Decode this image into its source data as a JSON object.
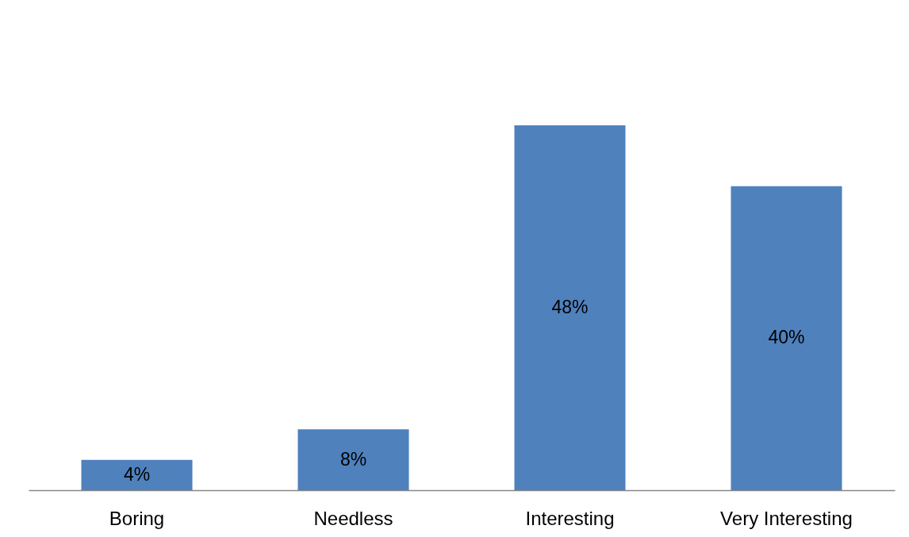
{
  "chart_data": {
    "type": "bar",
    "categories": [
      "Boring",
      "Needless",
      "Interesting",
      "Very Interesting"
    ],
    "values": [
      4,
      8,
      48,
      40
    ],
    "value_labels": [
      "4%",
      "8%",
      "48%",
      "40%"
    ],
    "color": "#4f81bd",
    "tick_labels": "x"
  }
}
